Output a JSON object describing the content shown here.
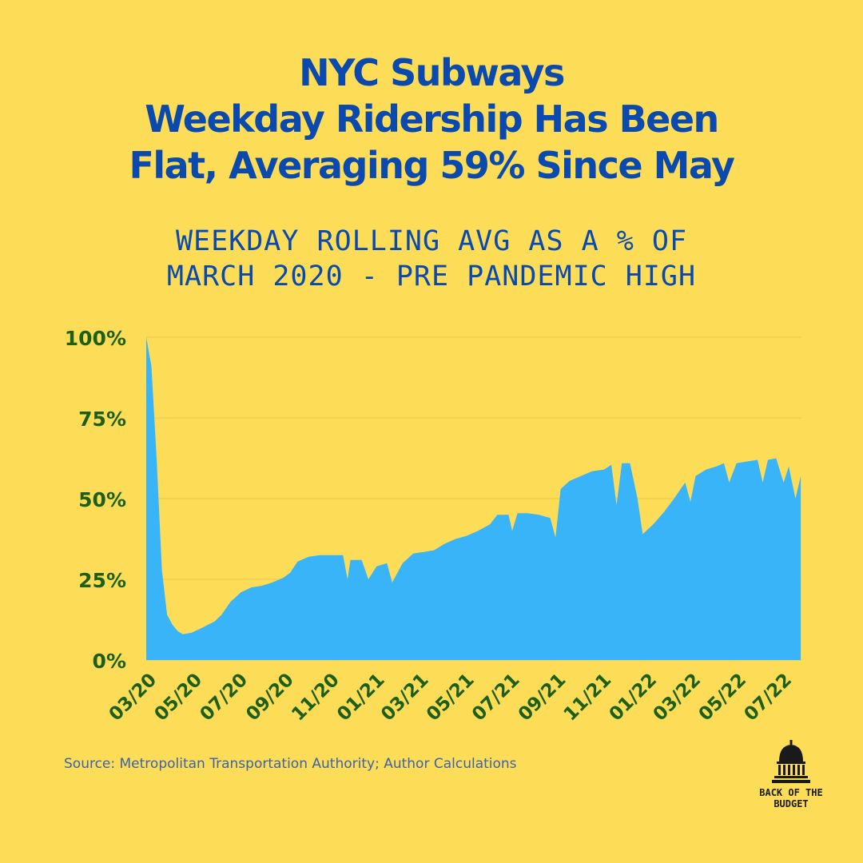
{
  "header": {
    "title_lines": [
      "NYC Subways",
      "Weekday Ridership Has Been",
      "Flat, Averaging 59% Since May"
    ],
    "subtitle_lines": [
      "WEEKDAY ROLLING AVG AS A % OF",
      "MARCH 2020 - PRE PANDEMIC HIGH"
    ]
  },
  "footer": {
    "source": "Source: Metropolitan Transportation Authority; Author Calculations",
    "logo_lines": [
      "BACK OF THE",
      "BUDGET"
    ],
    "logo_icon": "capitol-dome-icon"
  },
  "colors": {
    "background": "#FDDD57",
    "title": "#0A4AAE",
    "area_fill": "#3AB4F9",
    "axis_labels": "#1E5F17",
    "gridlines": "#E5C84E"
  },
  "chart_data": {
    "type": "area",
    "title": "",
    "xlabel": "",
    "ylabel": "",
    "ylim": [
      0,
      100
    ],
    "y_ticks": [
      0,
      25,
      50,
      75,
      100
    ],
    "y_tick_labels": [
      "0%",
      "25%",
      "50%",
      "75%",
      "100%"
    ],
    "x_range": [
      "2020-03",
      "2022-07"
    ],
    "x_ticks": [
      "2020-03",
      "2020-05",
      "2020-07",
      "2020-09",
      "2020-11",
      "2021-01",
      "2021-03",
      "2021-05",
      "2021-07",
      "2021-09",
      "2021-11",
      "2022-01",
      "2022-03",
      "2022-05",
      "2022-07"
    ],
    "x_tick_labels": [
      "03/20",
      "05/20",
      "07/20",
      "09/20",
      "11/20",
      "01/21",
      "03/21",
      "05/21",
      "07/21",
      "09/21",
      "11/21",
      "01/22",
      "03/22",
      "05/22",
      "07/22"
    ],
    "grid": true,
    "series": [
      {
        "values": [
          [
            "2020-03-01",
            100
          ],
          [
            "2020-03-08",
            91
          ],
          [
            "2020-03-15",
            62
          ],
          [
            "2020-03-22",
            28
          ],
          [
            "2020-03-29",
            14
          ],
          [
            "2020-04-05",
            11
          ],
          [
            "2020-04-12",
            9
          ],
          [
            "2020-04-19",
            8
          ],
          [
            "2020-05-01",
            8.5
          ],
          [
            "2020-05-15",
            10
          ],
          [
            "2020-06-01",
            12
          ],
          [
            "2020-06-10",
            14
          ],
          [
            "2020-06-22",
            18
          ],
          [
            "2020-07-06",
            21
          ],
          [
            "2020-07-20",
            22.5
          ],
          [
            "2020-08-03",
            23
          ],
          [
            "2020-08-17",
            24
          ],
          [
            "2020-09-01",
            25.5
          ],
          [
            "2020-09-10",
            27
          ],
          [
            "2020-09-20",
            30.5
          ],
          [
            "2020-10-05",
            32
          ],
          [
            "2020-10-20",
            32.5
          ],
          [
            "2020-11-05",
            32.5
          ],
          [
            "2020-11-20",
            32.5
          ],
          [
            "2020-11-26",
            25
          ],
          [
            "2020-11-30",
            31
          ],
          [
            "2020-12-15",
            31
          ],
          [
            "2020-12-24",
            25
          ],
          [
            "2021-01-04",
            29
          ],
          [
            "2021-01-18",
            30
          ],
          [
            "2021-01-25",
            24
          ],
          [
            "2021-02-08",
            30
          ],
          [
            "2021-02-22",
            33
          ],
          [
            "2021-03-08",
            33.5
          ],
          [
            "2021-03-22",
            34
          ],
          [
            "2021-04-05",
            36
          ],
          [
            "2021-04-20",
            37.5
          ],
          [
            "2021-05-05",
            38.5
          ],
          [
            "2021-05-20",
            40
          ],
          [
            "2021-06-05",
            42
          ],
          [
            "2021-06-15",
            45
          ],
          [
            "2021-06-30",
            45
          ],
          [
            "2021-07-05",
            40
          ],
          [
            "2021-07-12",
            45.5
          ],
          [
            "2021-07-26",
            45.5
          ],
          [
            "2021-08-10",
            45
          ],
          [
            "2021-08-25",
            44
          ],
          [
            "2021-09-01",
            38
          ],
          [
            "2021-09-08",
            53
          ],
          [
            "2021-09-20",
            55.5
          ],
          [
            "2021-10-05",
            57
          ],
          [
            "2021-10-20",
            58.5
          ],
          [
            "2021-11-05",
            59
          ],
          [
            "2021-11-15",
            60.5
          ],
          [
            "2021-11-22",
            48
          ],
          [
            "2021-11-29",
            61
          ],
          [
            "2021-12-10",
            61
          ],
          [
            "2021-12-20",
            50
          ],
          [
            "2021-12-27",
            39
          ],
          [
            "2022-01-10",
            42
          ],
          [
            "2022-01-25",
            46
          ],
          [
            "2022-02-07",
            50
          ],
          [
            "2022-02-22",
            55
          ],
          [
            "2022-03-01",
            49
          ],
          [
            "2022-03-08",
            57
          ],
          [
            "2022-03-22",
            59
          ],
          [
            "2022-04-05",
            60
          ],
          [
            "2022-04-15",
            61
          ],
          [
            "2022-04-22",
            55
          ],
          [
            "2022-05-02",
            61
          ],
          [
            "2022-05-16",
            61.5
          ],
          [
            "2022-05-30",
            62
          ],
          [
            "2022-06-06",
            55
          ],
          [
            "2022-06-13",
            62
          ],
          [
            "2022-06-24",
            62.5
          ],
          [
            "2022-07-04",
            55
          ],
          [
            "2022-07-11",
            60
          ],
          [
            "2022-07-20",
            50
          ],
          [
            "2022-07-27",
            57
          ]
        ]
      }
    ]
  }
}
